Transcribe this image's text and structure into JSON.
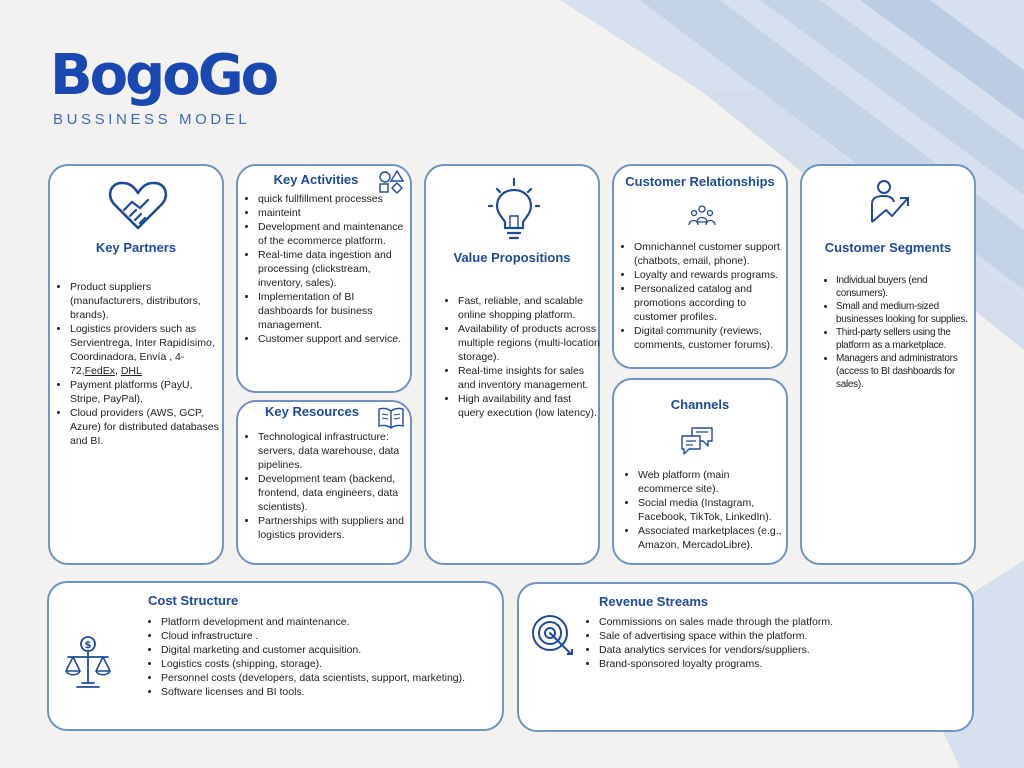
{
  "brand": {
    "name": "BogoGo",
    "subtitle": "BUSSINESS MODEL"
  },
  "key_partners": {
    "title": "Key Partners",
    "items": [
      "Product suppliers (manufacturers, distributors, brands).",
      "Logistics providers  such as Servientrega, Inter Rapidísimo, Coordinadora, Envía , 4-72,",
      "Payment platforms (PayU, Stripe, PayPal).",
      "Cloud providers (AWS, GCP, Azure) for distributed databases and BI."
    ],
    "link_fedex": "FedEx",
    "link_sep": ", ",
    "link_dhl": "DHL"
  },
  "key_activities": {
    "title": "Key Activities",
    "items": [
      "quick fullfillment processes",
      "mainteint",
      "Development and maintenance of the ecommerce platform.",
      "Real-time data ingestion and processing (clickstream, inventory, sales).",
      "Implementation of BI dashboards for business management.",
      "Customer support and service."
    ]
  },
  "key_resources": {
    "title": "Key Resources",
    "items": [
      "Technological infrastructure: servers, data warehouse, data pipelines.",
      "Development team (backend, frontend, data engineers, data scientists).",
      "Partnerships with suppliers and logistics providers."
    ]
  },
  "value_propositions": {
    "title": "Value Propositions",
    "items": [
      "Fast, reliable, and scalable online shopping platform.",
      "Availability of products across multiple regions (multi-location storage).",
      "Real-time insights for sales and inventory management.",
      "High availability and fast query execution (low latency)."
    ]
  },
  "customer_relationships": {
    "title": "Customer Relationships",
    "items": [
      "Omnichannel customer support (chatbots, email, phone).",
      "Loyalty and rewards programs.",
      "Personalized catalog and promotions according to customer profiles.",
      "Digital community (reviews, comments, customer forums)."
    ]
  },
  "channels": {
    "title": "Channels",
    "items": [
      "Web platform (main ecommerce site).",
      "Social media (Instagram, Facebook, TikTok, LinkedIn).",
      "Associated marketplaces (e.g., Amazon, MercadoLibre)."
    ]
  },
  "customer_segments": {
    "title": "Customer Segments",
    "items": [
      "Individual buyers (end consumers).",
      "Small and medium-sized businesses looking for supplies.",
      "Third-party sellers using the platform as a marketplace.",
      "Managers and administrators (access to BI dashboards for sales)."
    ]
  },
  "cost_structure": {
    "title": "Cost Structure",
    "items": [
      "Platform development and maintenance.",
      "Cloud infrastructure .",
      "Digital marketing and customer acquisition.",
      "Logistics costs (shipping, storage).",
      "Personnel costs (developers, data scientists, support, marketing).",
      "Software licenses and BI tools."
    ]
  },
  "revenue_streams": {
    "title": "Revenue Streams",
    "items": [
      "Commissions on sales made through the platform.",
      "Sale of advertising space within the platform.",
      "Data analytics services for vendors/suppliers.",
      "Brand-sponsored loyalty programs."
    ]
  },
  "colors": {
    "brand_blue": "#1a48b3",
    "title_blue": "#1e4a9a",
    "card_border": "#6f93c7",
    "background": "#f3f2f1",
    "stripe": "#c9d6e8"
  },
  "icons": {
    "key_partners": "handshake-heart-icon",
    "key_activities": "shapes-icon",
    "key_resources": "book-icon",
    "value_propositions": "lightbulb-icon",
    "customer_relationships": "team-icon",
    "channels": "chat-bubbles-icon",
    "customer_segments": "person-growth-icon",
    "cost_structure": "balance-scale-dollar-icon",
    "revenue_streams": "target-arrow-icon"
  }
}
